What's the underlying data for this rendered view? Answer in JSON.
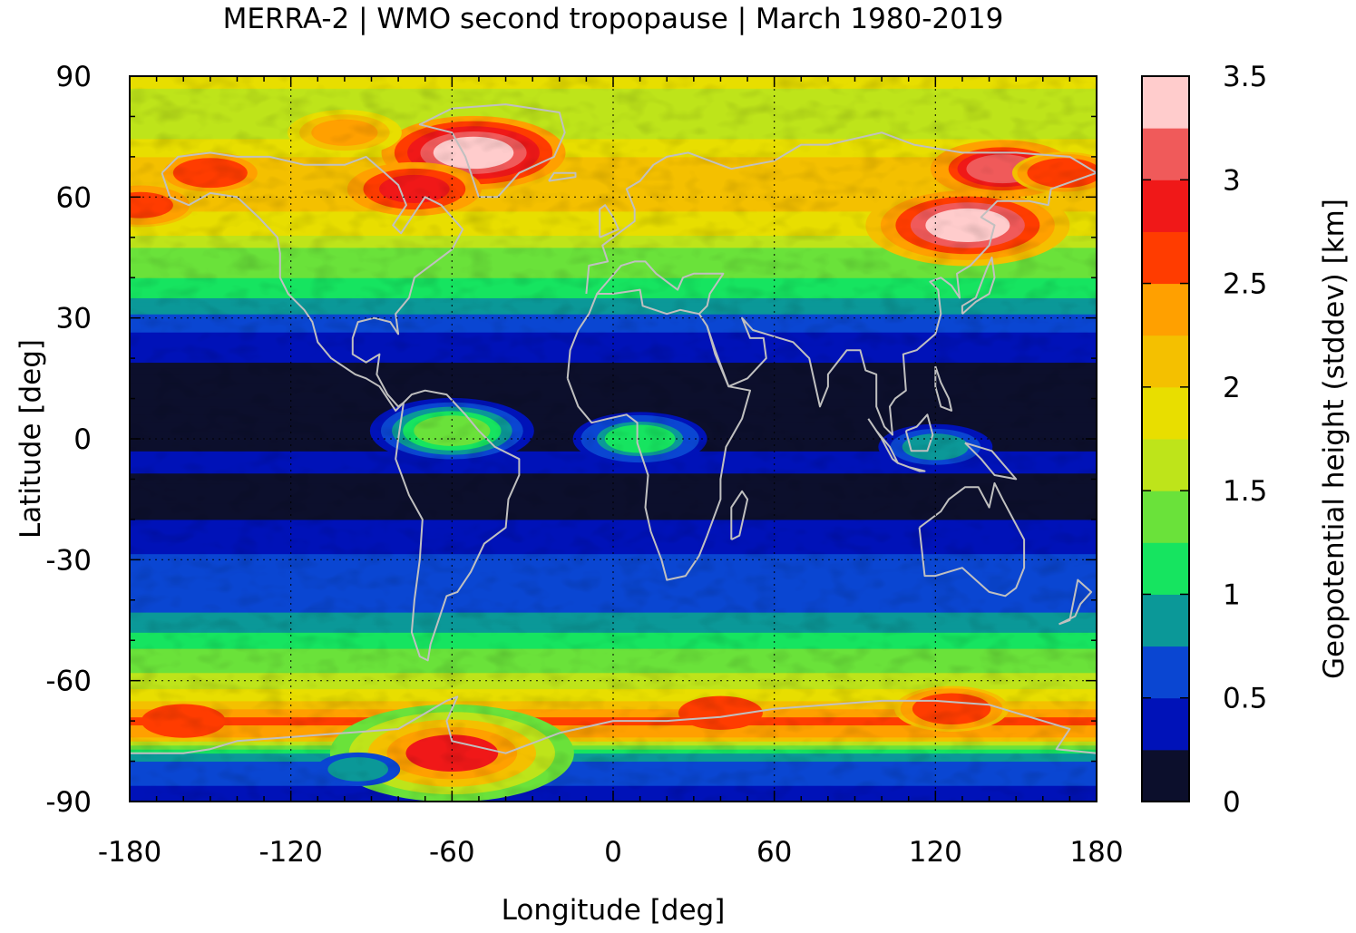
{
  "chart_data": {
    "type": "heatmap",
    "title": "MERRA-2 | WMO second tropopause | March 1980-2019",
    "xlabel": "Longitude [deg]",
    "ylabel": "Latitude [deg]",
    "colorbar_label": "Geopotential height (stddev) [km]",
    "xlim": [
      -180,
      180
    ],
    "ylim": [
      -90,
      90
    ],
    "x_ticks": [
      -180,
      -120,
      -60,
      0,
      60,
      120,
      180
    ],
    "x_tick_labels": [
      "-180",
      "-120",
      "-60",
      "0",
      "60",
      "120",
      "180"
    ],
    "y_ticks": [
      90,
      60,
      30,
      0,
      -30,
      -60,
      -90
    ],
    "y_tick_labels": [
      "90",
      "60",
      "30",
      "0",
      "-30",
      "-60",
      "-90"
    ],
    "grid": true,
    "colorbar": {
      "range": [
        0,
        3.5
      ],
      "ticks": [
        0,
        0.5,
        1,
        1.5,
        2,
        2.5,
        3,
        3.5
      ],
      "tick_labels": [
        "0",
        "0.5",
        "1",
        "1.5",
        "2",
        "2.5",
        "3",
        "3.5"
      ],
      "levels": [
        {
          "min": 0.0,
          "max": 0.25,
          "color": "#0c0f2c"
        },
        {
          "min": 0.25,
          "max": 0.5,
          "color": "#0012b8"
        },
        {
          "min": 0.5,
          "max": 0.75,
          "color": "#0a46d2"
        },
        {
          "min": 0.75,
          "max": 1.0,
          "color": "#0b9898"
        },
        {
          "min": 1.0,
          "max": 1.25,
          "color": "#16e460"
        },
        {
          "min": 1.25,
          "max": 1.5,
          "color": "#6ae23a"
        },
        {
          "min": 1.5,
          "max": 1.75,
          "color": "#bee41a"
        },
        {
          "min": 1.75,
          "max": 2.0,
          "color": "#e8de00"
        },
        {
          "min": 2.0,
          "max": 2.25,
          "color": "#f4c000"
        },
        {
          "min": 2.25,
          "max": 2.5,
          "color": "#ffa000"
        },
        {
          "min": 2.5,
          "max": 2.75,
          "color": "#ff3c00"
        },
        {
          "min": 2.75,
          "max": 3.0,
          "color": "#f01818"
        },
        {
          "min": 3.0,
          "max": 3.25,
          "color": "#f05a5a"
        },
        {
          "min": 3.25,
          "max": 3.5,
          "color": "#ffcccc"
        }
      ]
    },
    "zonal_profile": [
      {
        "lat": -90,
        "value": 0.45
      },
      {
        "lat": -82,
        "value": 0.55
      },
      {
        "lat": -78,
        "value": 0.9
      },
      {
        "lat": -74,
        "value": 2.2
      },
      {
        "lat": -70,
        "value": 2.6
      },
      {
        "lat": -66,
        "value": 2.1
      },
      {
        "lat": -62,
        "value": 1.75
      },
      {
        "lat": -58,
        "value": 1.5
      },
      {
        "lat": -54,
        "value": 1.35
      },
      {
        "lat": -50,
        "value": 1.15
      },
      {
        "lat": -46,
        "value": 0.9
      },
      {
        "lat": -42,
        "value": 0.7
      },
      {
        "lat": -36,
        "value": 0.6
      },
      {
        "lat": -30,
        "value": 0.55
      },
      {
        "lat": -24,
        "value": 0.35
      },
      {
        "lat": -16,
        "value": 0.12
      },
      {
        "lat": -6,
        "value": 0.3
      },
      {
        "lat": 0,
        "value": 0.2
      },
      {
        "lat": 8,
        "value": 0.1
      },
      {
        "lat": 16,
        "value": 0.12
      },
      {
        "lat": 22,
        "value": 0.35
      },
      {
        "lat": 28,
        "value": 0.55
      },
      {
        "lat": 32,
        "value": 0.8
      },
      {
        "lat": 36,
        "value": 1.05
      },
      {
        "lat": 40,
        "value": 1.25
      },
      {
        "lat": 46,
        "value": 1.45
      },
      {
        "lat": 52,
        "value": 1.8
      },
      {
        "lat": 58,
        "value": 2.05
      },
      {
        "lat": 64,
        "value": 2.1
      },
      {
        "lat": 70,
        "value": 2.0
      },
      {
        "lat": 76,
        "value": 1.7
      },
      {
        "lat": 82,
        "value": 1.5
      },
      {
        "lat": 86,
        "value": 1.7
      },
      {
        "lat": 90,
        "value": 1.85
      }
    ],
    "anomalies": [
      {
        "lon": -52,
        "lat": 71,
        "value": 3.3
      },
      {
        "lon": -74,
        "lat": 62,
        "value": 2.9
      },
      {
        "lon": -100,
        "lat": 76,
        "value": 2.3
      },
      {
        "lon": -150,
        "lat": 66,
        "value": 2.6
      },
      {
        "lon": -176,
        "lat": 58,
        "value": 2.6
      },
      {
        "lon": 132,
        "lat": 53,
        "value": 3.3
      },
      {
        "lon": 145,
        "lat": 67,
        "value": 3.0
      },
      {
        "lon": 168,
        "lat": 66,
        "value": 2.6
      },
      {
        "lon": -160,
        "lat": -70,
        "value": 2.7
      },
      {
        "lon": -60,
        "lat": -78,
        "value": 2.8
      },
      {
        "lon": 126,
        "lat": -67,
        "value": 2.7
      },
      {
        "lon": 40,
        "lat": -68,
        "value": 2.55
      },
      {
        "lon": -60,
        "lat": 2,
        "value": 1.3
      },
      {
        "lon": 10,
        "lat": 0,
        "value": 1.0
      },
      {
        "lon": 120,
        "lat": -2,
        "value": 0.8
      },
      {
        "lon": -95,
        "lat": -82,
        "value": 0.75
      }
    ]
  }
}
